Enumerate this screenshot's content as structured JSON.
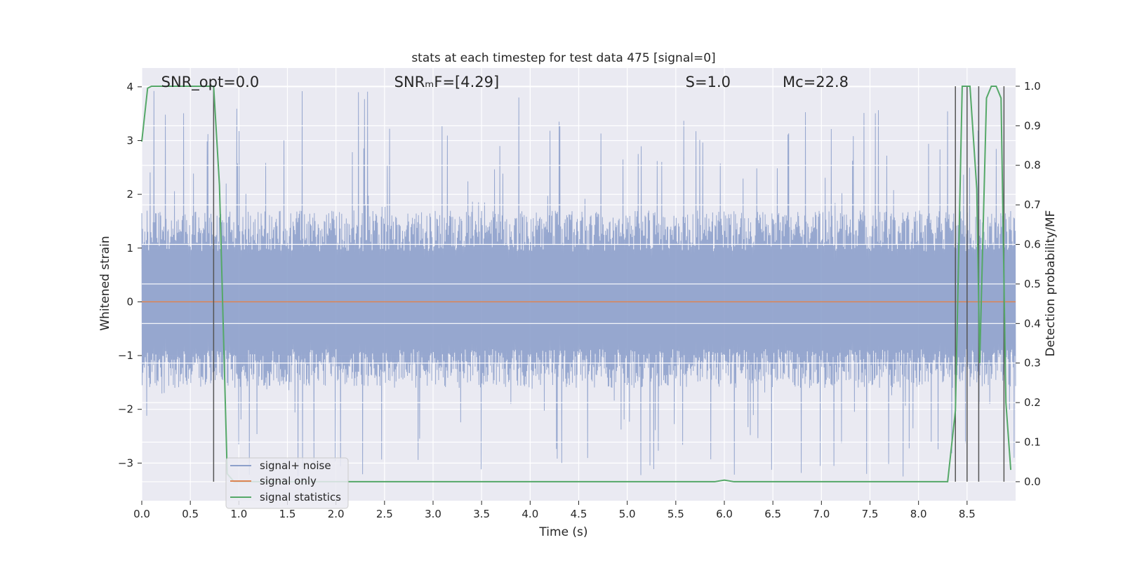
{
  "chart_data": {
    "type": "line",
    "title": "stats at each timestep for test data 475 [signal=0]",
    "xlabel": "Time (s)",
    "ylabel": "Whitened strain",
    "y2label": "Detection probability/MF",
    "xlim": [
      0,
      9.0
    ],
    "ylim": [
      -3.7,
      4.35
    ],
    "y2lim": [
      -0.048,
      1.046
    ],
    "x_ticks": [
      0.0,
      0.5,
      1.0,
      1.5,
      2.0,
      2.5,
      3.0,
      3.5,
      4.0,
      4.5,
      5.0,
      5.5,
      6.0,
      6.5,
      7.0,
      7.5,
      8.0,
      8.5
    ],
    "x_tick_labels": [
      "0.0",
      "0.5",
      "1.0",
      "1.5",
      "2.0",
      "2.5",
      "3.0",
      "3.5",
      "4.0",
      "4.5",
      "5.0",
      "5.5",
      "6.0",
      "6.5",
      "7.0",
      "7.5",
      "8.0",
      "8.5"
    ],
    "y_ticks": [
      -3,
      -2,
      -1,
      0,
      1,
      2,
      3,
      4
    ],
    "y_tick_labels": [
      "−3",
      "−2",
      "−1",
      "0",
      "1",
      "2",
      "3",
      "4"
    ],
    "y2_ticks": [
      0.0,
      0.1,
      0.2,
      0.3,
      0.4,
      0.5,
      0.6,
      0.7,
      0.8,
      0.9,
      1.0
    ],
    "y2_tick_labels": [
      "0.0",
      "0.1",
      "0.2",
      "0.3",
      "0.4",
      "0.5",
      "0.6",
      "0.7",
      "0.8",
      "0.9",
      "1.0"
    ],
    "grid": true,
    "legend_position": "lower-left",
    "annotations": [
      {
        "name": "snr-opt",
        "text": "SNR_opt=0.0",
        "x": 0.2
      },
      {
        "name": "snr-mf",
        "text": "SNRₘF=[4.29]",
        "x": 2.6
      },
      {
        "name": "s-value",
        "text": "S=1.0",
        "x": 5.6
      },
      {
        "name": "mc-value",
        "text": "Mᴄ=22.8",
        "x": 6.6
      }
    ],
    "series": [
      {
        "name": "signal+ noise",
        "color": "#8da0cb",
        "style": "noise",
        "n_samples": 2300,
        "typical_amplitude": [
          -1.6,
          1.7
        ],
        "range_observed": [
          -3.3,
          4.0
        ]
      },
      {
        "name": "signal only",
        "color": "#dd8452",
        "x": [
          0.0,
          9.0
        ],
        "y": [
          0.0,
          0.0
        ]
      },
      {
        "name": "signal statistics",
        "color": "#55a868",
        "axis": "right",
        "x": [
          0.0,
          0.06,
          0.1,
          0.2,
          0.3,
          0.4,
          0.5,
          0.6,
          0.7,
          0.74,
          0.8,
          0.88,
          0.95,
          1.0,
          1.5,
          2.0,
          2.5,
          3.0,
          3.5,
          4.0,
          4.5,
          5.0,
          5.5,
          5.9,
          6.0,
          6.1,
          6.5,
          7.0,
          7.5,
          8.0,
          8.3,
          8.38,
          8.45,
          8.53,
          8.6,
          8.63,
          8.7,
          8.75,
          8.8,
          8.85,
          8.9,
          8.95
        ],
        "y": [
          0.86,
          0.995,
          1.0,
          1.0,
          1.0,
          1.0,
          1.0,
          1.0,
          1.0,
          1.0,
          0.75,
          0.02,
          0.0,
          0.0,
          0.0,
          0.0,
          0.0,
          0.0,
          0.0,
          0.0,
          0.0,
          0.0,
          0.0,
          0.0,
          0.004,
          0.0,
          0.0,
          0.0,
          0.0,
          0.0,
          0.0,
          0.18,
          1.0,
          1.0,
          0.74,
          0.3,
          0.97,
          1.0,
          1.0,
          0.97,
          0.2,
          0.03
        ]
      }
    ],
    "vertical_lines": {
      "color": "#555555",
      "x": [
        0.74,
        8.38,
        8.5,
        8.62,
        8.88
      ]
    }
  }
}
